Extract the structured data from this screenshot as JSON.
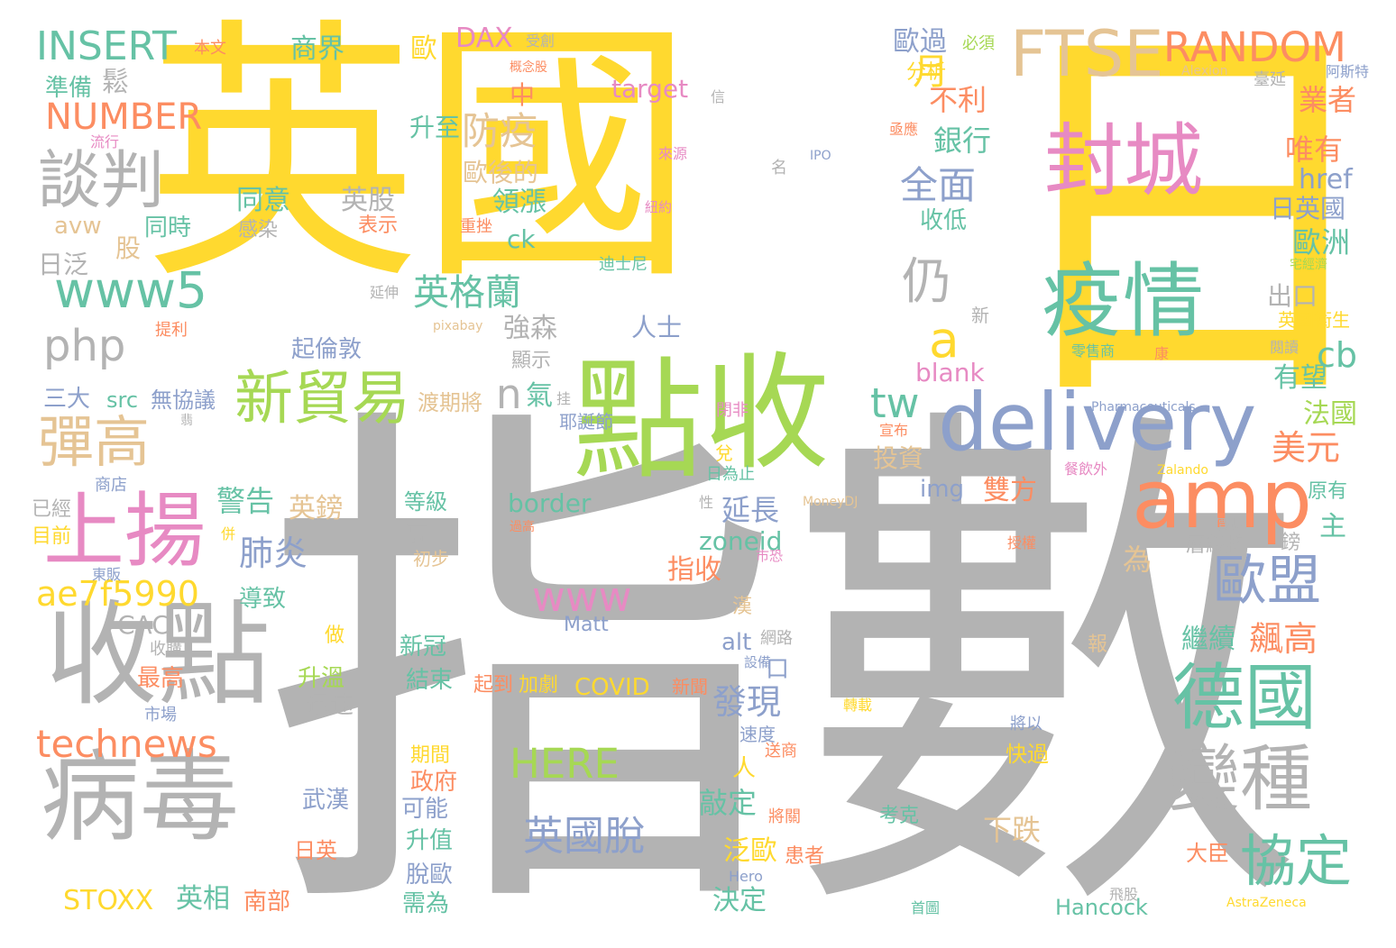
{
  "palette": {
    "gold": "#ffd92f",
    "gray": "#b3b3b3",
    "green": "#a6d854",
    "teal": "#66c2a5",
    "orange": "#fc8d62",
    "blue": "#8da0cb",
    "pink": "#e78ac3",
    "tan": "#e5c494"
  },
  "words": [
    {
      "text": "英國",
      "color": "gold",
      "vertical": false
    },
    {
      "text": "日",
      "color": "gold",
      "vertical": false
    },
    {
      "text": "指數",
      "color": "gray",
      "vertical": false
    },
    {
      "text": "點",
      "color": "green",
      "vertical": false
    },
    {
      "text": "收",
      "color": "green",
      "vertical": false
    },
    {
      "text": "封城",
      "color": "pink",
      "vertical": false
    },
    {
      "text": "疫情",
      "color": "teal",
      "vertical": false
    },
    {
      "text": "delivery",
      "color": "blue",
      "vertical": false
    },
    {
      "text": "amp",
      "color": "orange",
      "vertical": false
    },
    {
      "text": "收點",
      "color": "gray",
      "vertical": false
    },
    {
      "text": "病毒",
      "color": "gray",
      "vertical": false
    },
    {
      "text": "上揚",
      "color": "pink",
      "vertical": false
    },
    {
      "text": "FTSE",
      "color": "tan",
      "vertical": false
    },
    {
      "text": "RANDOM",
      "color": "orange",
      "vertical": false
    },
    {
      "text": "INSERT",
      "color": "teal",
      "vertical": false
    },
    {
      "text": "NUMBER",
      "color": "orange",
      "vertical": false
    },
    {
      "text": "談判",
      "color": "gray",
      "vertical": false
    },
    {
      "text": "www5",
      "color": "teal",
      "vertical": false
    },
    {
      "text": "php",
      "color": "gray",
      "vertical": false
    },
    {
      "text": "彈高",
      "color": "tan",
      "vertical": false
    },
    {
      "text": "新貿易",
      "color": "green",
      "vertical": false
    },
    {
      "text": "ae7f5990",
      "color": "gold",
      "vertical": false
    },
    {
      "text": "technews",
      "color": "orange",
      "vertical": false
    },
    {
      "text": "德國",
      "color": "teal",
      "vertical": false
    },
    {
      "text": "歐盟",
      "color": "blue",
      "vertical": false
    },
    {
      "text": "變種",
      "color": "gray",
      "vertical": false
    },
    {
      "text": "協定",
      "color": "teal",
      "vertical": false
    },
    {
      "text": "仍",
      "color": "gray",
      "vertical": false
    },
    {
      "text": "a",
      "color": "gold",
      "vertical": false
    },
    {
      "text": "tw",
      "color": "teal",
      "vertical": false
    },
    {
      "text": "www",
      "color": "pink",
      "vertical": false
    },
    {
      "text": "HERE",
      "color": "green",
      "vertical": false
    },
    {
      "text": "英國脫",
      "color": "blue",
      "vertical": false
    },
    {
      "text": "英格蘭",
      "color": "teal",
      "vertical": false
    },
    {
      "text": "防疫",
      "color": "tan",
      "vertical": false
    },
    {
      "text": "全面",
      "color": "blue",
      "vertical": false
    },
    {
      "text": "月",
      "color": "gold",
      "vertical": false
    },
    {
      "text": "n",
      "color": "gray",
      "vertical": false
    },
    {
      "text": "氣",
      "color": "teal",
      "vertical": false
    },
    {
      "text": "肺炎",
      "color": "blue",
      "vertical": false
    },
    {
      "text": "警告",
      "color": "teal",
      "vertical": false
    },
    {
      "text": "發現",
      "color": "blue",
      "vertical": false
    },
    {
      "text": "飆高",
      "color": "orange",
      "vertical": false
    },
    {
      "text": "美元",
      "color": "orange",
      "vertical": false
    },
    {
      "text": "cb",
      "color": "teal",
      "vertical": false
    },
    {
      "text": "blank",
      "color": "pink",
      "vertical": false
    },
    {
      "text": "商界",
      "color": "teal",
      "vertical": false
    },
    {
      "text": "DAX",
      "color": "pink",
      "vertical": false
    },
    {
      "text": "歐",
      "color": "gold",
      "vertical": false
    },
    {
      "text": "target",
      "color": "pink",
      "vertical": false
    },
    {
      "text": "歐過",
      "color": "blue",
      "vertical": false
    },
    {
      "text": "分析",
      "color": "gold",
      "vertical": false
    },
    {
      "text": "不利",
      "color": "orange",
      "vertical": false
    },
    {
      "text": "銀行",
      "color": "teal",
      "vertical": false
    },
    {
      "text": "收低",
      "color": "teal",
      "vertical": false
    },
    {
      "text": "業者",
      "color": "orange",
      "vertical": false
    },
    {
      "text": "唯有",
      "color": "orange",
      "vertical": false
    },
    {
      "text": "href",
      "color": "blue",
      "vertical": false
    },
    {
      "text": "日英國",
      "color": "blue",
      "vertical": false
    },
    {
      "text": "歐洲",
      "color": "teal",
      "vertical": false
    },
    {
      "text": "出口",
      "color": "gray",
      "vertical": false
    },
    {
      "text": "英國衛生",
      "color": "gold",
      "vertical": false
    },
    {
      "text": "有望",
      "color": "teal",
      "vertical": false
    },
    {
      "text": "法國",
      "color": "green",
      "vertical": false
    },
    {
      "text": "原有",
      "color": "teal",
      "vertical": false
    },
    {
      "text": "主",
      "color": "teal",
      "vertical": false
    },
    {
      "text": "準備",
      "color": "teal",
      "vertical": false
    },
    {
      "text": "同意",
      "color": "teal",
      "vertical": false
    },
    {
      "text": "英股",
      "color": "gray",
      "vertical": false
    },
    {
      "text": "同時",
      "color": "teal",
      "vertical": false
    },
    {
      "text": "感染",
      "color": "gray",
      "vertical": false
    },
    {
      "text": "表示",
      "color": "orange",
      "vertical": false
    },
    {
      "text": "avw",
      "color": "tan",
      "vertical": false
    },
    {
      "text": "股",
      "color": "tan",
      "vertical": false
    },
    {
      "text": "日泛",
      "color": "gray",
      "vertical": false
    },
    {
      "text": "升至",
      "color": "teal",
      "vertical": false
    },
    {
      "text": "歐後的",
      "color": "tan",
      "vertical": false
    },
    {
      "text": "領漲",
      "color": "teal",
      "vertical": false
    },
    {
      "text": "ck",
      "color": "teal",
      "vertical": false
    },
    {
      "text": "中",
      "color": "orange",
      "vertical": false
    },
    {
      "text": "起倫敦",
      "color": "blue",
      "vertical": false
    },
    {
      "text": "強森",
      "color": "gray",
      "vertical": false
    },
    {
      "text": "顯示",
      "color": "gray",
      "vertical": false
    },
    {
      "text": "人士",
      "color": "blue",
      "vertical": false
    },
    {
      "text": "三大",
      "color": "blue",
      "vertical": false
    },
    {
      "text": "src",
      "color": "teal",
      "vertical": false
    },
    {
      "text": "無協議",
      "color": "blue",
      "vertical": false
    },
    {
      "text": "渡期將",
      "color": "tan",
      "vertical": false
    },
    {
      "text": "耶誕節",
      "color": "blue",
      "vertical": false
    },
    {
      "text": "投資",
      "color": "tan",
      "vertical": false
    },
    {
      "text": "img",
      "color": "blue",
      "vertical": false
    },
    {
      "text": "雙方",
      "color": "orange",
      "vertical": false
    },
    {
      "text": "border",
      "color": "teal",
      "vertical": false
    },
    {
      "text": "英鎊",
      "color": "tan",
      "vertical": false
    },
    {
      "text": "延長",
      "color": "blue",
      "vertical": false
    },
    {
      "text": "zoneid",
      "color": "teal",
      "vertical": false
    },
    {
      "text": "指收",
      "color": "orange",
      "vertical": false
    },
    {
      "text": "已經",
      "color": "gray",
      "vertical": false
    },
    {
      "text": "目前",
      "color": "gold",
      "vertical": false
    },
    {
      "text": "商店",
      "color": "blue",
      "vertical": false
    },
    {
      "text": "導致",
      "color": "teal",
      "vertical": false
    },
    {
      "text": "CAC",
      "color": "gray",
      "vertical": false
    },
    {
      "text": "收購",
      "color": "gray",
      "vertical": false
    },
    {
      "text": "最高",
      "color": "orange",
      "vertical": false
    },
    {
      "text": "升溫",
      "color": "green",
      "vertical": false
    },
    {
      "text": "迅速",
      "color": "gray",
      "vertical": false
    },
    {
      "text": "做",
      "color": "gold",
      "vertical": false
    },
    {
      "text": "市場",
      "color": "blue",
      "vertical": false
    },
    {
      "text": "alt",
      "color": "blue",
      "vertical": false
    },
    {
      "text": "新冠",
      "color": "teal",
      "vertical": false
    },
    {
      "text": "結束",
      "color": "teal",
      "vertical": false
    },
    {
      "text": "起到",
      "color": "orange",
      "vertical": false
    },
    {
      "text": "加劇",
      "color": "gold",
      "vertical": false
    },
    {
      "text": "COVID",
      "color": "gold",
      "vertical": false
    },
    {
      "text": "新聞",
      "color": "orange",
      "vertical": false
    },
    {
      "text": "Matt",
      "color": "blue",
      "vertical": false
    },
    {
      "text": "繼續",
      "color": "teal",
      "vertical": false
    },
    {
      "text": "層級將",
      "color": "gray",
      "vertical": false
    },
    {
      "text": "為",
      "color": "tan",
      "vertical": false
    },
    {
      "text": "報",
      "color": "tan",
      "vertical": false
    },
    {
      "text": "武漢",
      "color": "blue",
      "vertical": false
    },
    {
      "text": "期間",
      "color": "gold",
      "vertical": false
    },
    {
      "text": "政府",
      "color": "orange",
      "vertical": false
    },
    {
      "text": "可能",
      "color": "blue",
      "vertical": false
    },
    {
      "text": "升值",
      "color": "teal",
      "vertical": false
    },
    {
      "text": "脫歐",
      "color": "blue",
      "vertical": false
    },
    {
      "text": "需為",
      "color": "teal",
      "vertical": false
    },
    {
      "text": "敲定",
      "color": "teal",
      "vertical": false
    },
    {
      "text": "泛歐",
      "color": "gold",
      "vertical": false
    },
    {
      "text": "決定",
      "color": "teal",
      "vertical": false
    },
    {
      "text": "患者",
      "color": "orange",
      "vertical": false
    },
    {
      "text": "下跌",
      "color": "tan",
      "vertical": false
    },
    {
      "text": "快過",
      "color": "gold",
      "vertical": false
    },
    {
      "text": "考克",
      "color": "teal",
      "vertical": false
    },
    {
      "text": "大臣",
      "color": "orange",
      "vertical": false
    },
    {
      "text": "Hancock",
      "color": "teal",
      "vertical": false
    },
    {
      "text": "STOXX",
      "color": "gold",
      "vertical": false
    },
    {
      "text": "英相",
      "color": "teal",
      "vertical": false
    },
    {
      "text": "南部",
      "color": "orange",
      "vertical": false
    },
    {
      "text": "日英",
      "color": "orange",
      "vertical": false
    },
    {
      "text": "鬆",
      "color": "gray",
      "vertical": false
    },
    {
      "text": "本文",
      "color": "orange",
      "vertical": false
    },
    {
      "text": "流行",
      "color": "pink",
      "vertical": false
    },
    {
      "text": "受創",
      "color": "gray",
      "vertical": false
    },
    {
      "text": "概念股",
      "color": "orange",
      "vertical": false
    },
    {
      "text": "必須",
      "color": "green",
      "vertical": false
    },
    {
      "text": "Alexion",
      "color": "tan",
      "vertical": false
    },
    {
      "text": "阿斯特",
      "color": "blue",
      "vertical": false
    },
    {
      "text": "臺延",
      "color": "gray",
      "vertical": false
    },
    {
      "text": "IPO",
      "color": "blue",
      "vertical": false
    },
    {
      "text": "亟應",
      "color": "orange",
      "vertical": false
    },
    {
      "text": "來源",
      "color": "pink",
      "vertical": false
    },
    {
      "text": "名",
      "color": "gray",
      "vertical": false
    },
    {
      "text": "紐約",
      "color": "pink",
      "vertical": false
    },
    {
      "text": "重挫",
      "color": "orange",
      "vertical": false
    },
    {
      "text": "迪士尼",
      "color": "teal",
      "vertical": false
    },
    {
      "text": "延伸",
      "color": "gray",
      "vertical": false
    },
    {
      "text": "pixabay",
      "color": "tan",
      "vertical": false
    },
    {
      "text": "新",
      "color": "gray",
      "vertical": false
    },
    {
      "text": "提利",
      "color": "orange",
      "vertical": false
    },
    {
      "text": "宅經濟",
      "color": "green",
      "vertical": false
    },
    {
      "text": "閱讀",
      "color": "gray",
      "vertical": false
    },
    {
      "text": "零售商",
      "color": "teal",
      "vertical": false
    },
    {
      "text": "康",
      "color": "orange",
      "vertical": false
    },
    {
      "text": "Pharmaceuticals",
      "color": "blue",
      "vertical": false
    },
    {
      "text": "閉非",
      "color": "pink",
      "vertical": false
    },
    {
      "text": "宣布",
      "color": "orange",
      "vertical": false
    },
    {
      "text": "兌",
      "color": "gold",
      "vertical": false
    },
    {
      "text": "日為止",
      "color": "teal",
      "vertical": false
    },
    {
      "text": "餐飲外",
      "color": "pink",
      "vertical": false
    },
    {
      "text": "Zalando",
      "color": "gold",
      "vertical": false
    },
    {
      "text": "MoneyDJ",
      "color": "tan",
      "vertical": false
    },
    {
      "text": "性",
      "color": "gray",
      "vertical": false
    },
    {
      "text": "價碼",
      "color": "gray",
      "vertical": false
    },
    {
      "text": "鎊",
      "color": "gray",
      "vertical": false
    },
    {
      "text": "授權",
      "color": "orange",
      "vertical": false
    },
    {
      "text": "市恐",
      "color": "pink",
      "vertical": false
    },
    {
      "text": "東販",
      "color": "blue",
      "vertical": false
    },
    {
      "text": "併",
      "color": "gold",
      "vertical": false
    },
    {
      "text": "初步",
      "color": "tan",
      "vertical": false
    },
    {
      "text": "高",
      "color": "gray",
      "vertical": false
    },
    {
      "text": "等級",
      "color": "teal",
      "vertical": false
    },
    {
      "text": "過高",
      "color": "orange",
      "vertical": false
    },
    {
      "text": "漢",
      "color": "tan",
      "vertical": false
    },
    {
      "text": "網路",
      "color": "gray",
      "vertical": false
    },
    {
      "text": "設備",
      "color": "blue",
      "vertical": false
    },
    {
      "text": "口",
      "color": "blue",
      "vertical": false
    },
    {
      "text": "人",
      "color": "gold",
      "vertical": false
    },
    {
      "text": "轉載",
      "color": "gold",
      "vertical": false
    },
    {
      "text": "速度",
      "color": "blue",
      "vertical": false
    },
    {
      "text": "送商",
      "color": "orange",
      "vertical": false
    },
    {
      "text": "將以",
      "color": "blue",
      "vertical": false
    },
    {
      "text": "將關",
      "color": "orange",
      "vertical": false
    },
    {
      "text": "Hero",
      "color": "blue",
      "vertical": false
    },
    {
      "text": "首圖",
      "color": "teal",
      "vertical": false
    },
    {
      "text": "飛股",
      "color": "gray",
      "vertical": false
    },
    {
      "text": "AstraZeneca",
      "color": "gold",
      "vertical": false
    },
    {
      "text": "信",
      "color": "gray",
      "vertical": false
    },
    {
      "text": "挂",
      "color": "gray",
      "vertical": false
    },
    {
      "text": "翡",
      "color": "gray",
      "vertical": false
    }
  ]
}
